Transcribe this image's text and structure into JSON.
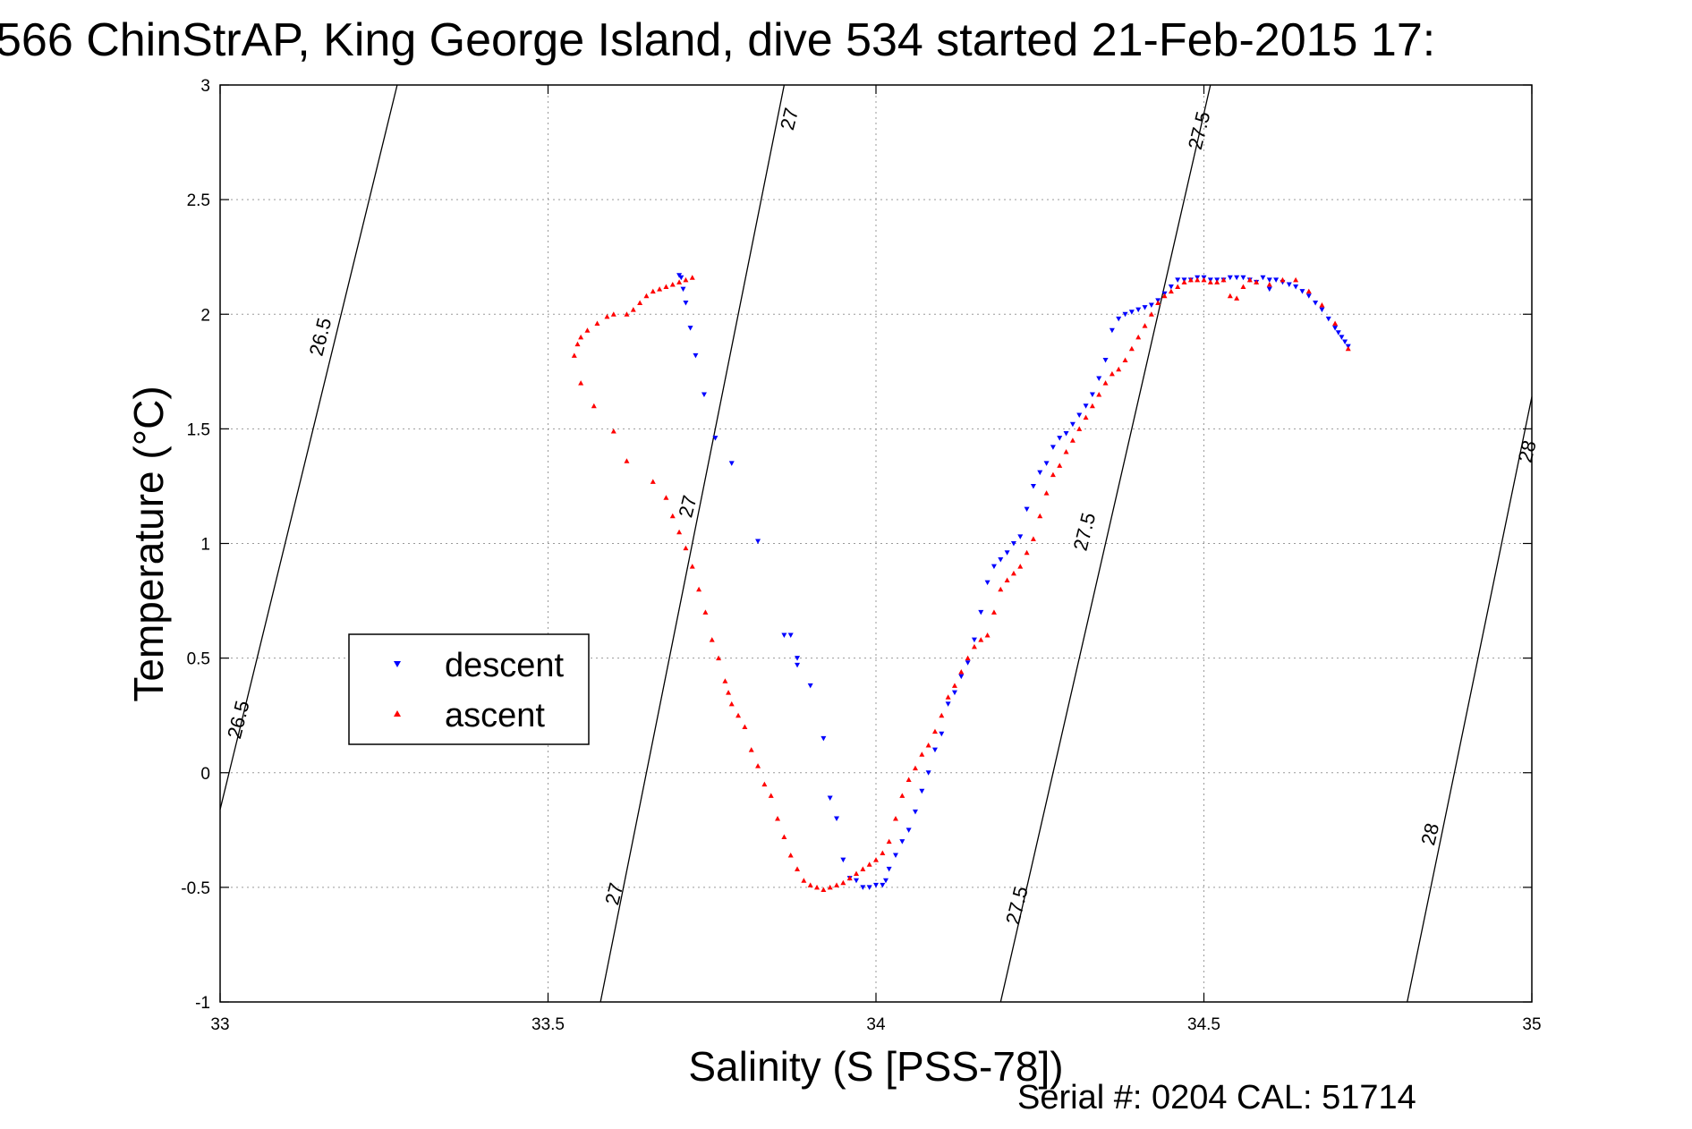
{
  "title": "566 ChinStrAP, King George Island, dive 534 started 21-Feb-2015 17:",
  "footer": "Serial #: 0204  CAL: 51714",
  "chart_data": {
    "type": "scatter",
    "title": "566 ChinStrAP, King George Island, dive 534 started 21-Feb-2015 17:",
    "xlabel": "Salinity (S [PSS-78])",
    "ylabel": "Temperature (°C)",
    "xlim": [
      33,
      35
    ],
    "ylim": [
      -1,
      3
    ],
    "xticks": [
      "33",
      "33.5",
      "34",
      "34.5",
      "35"
    ],
    "yticks": [
      "-1",
      "-0.5",
      "0",
      "0.5",
      "1",
      "1.5",
      "2",
      "2.5",
      "3"
    ],
    "grid": true,
    "legend_position": "center-left",
    "legend": [
      "descent",
      "ascent"
    ],
    "density_contours": [
      {
        "level": "26.5",
        "points": [
          [
            33.0,
            -0.16
          ],
          [
            33.27,
            3.0
          ]
        ]
      },
      {
        "level": "27",
        "points": [
          [
            33.58,
            -1.0
          ],
          [
            33.86,
            3.0
          ]
        ]
      },
      {
        "level": "27.5",
        "points": [
          [
            34.19,
            -1.0
          ],
          [
            34.51,
            3.0
          ]
        ]
      },
      {
        "level": "28",
        "points": [
          [
            34.81,
            -1.0
          ],
          [
            35.0,
            1.64
          ]
        ]
      }
    ],
    "contour_labels": [
      {
        "text": "26.5",
        "x": 33.155,
        "y": 1.9
      },
      {
        "text": "26.5",
        "x": 33.03,
        "y": 0.23
      },
      {
        "text": "27",
        "x": 33.87,
        "y": 2.85
      },
      {
        "text": "27",
        "x": 33.715,
        "y": 1.16
      },
      {
        "text": "27",
        "x": 33.603,
        "y": -0.53
      },
      {
        "text": "27.5",
        "x": 34.495,
        "y": 2.8
      },
      {
        "text": "27.5",
        "x": 34.32,
        "y": 1.05
      },
      {
        "text": "27.5",
        "x": 34.217,
        "y": -0.58
      },
      {
        "text": "28",
        "x": 34.995,
        "y": 1.4
      },
      {
        "text": "28",
        "x": 34.847,
        "y": -0.27
      }
    ],
    "series": [
      {
        "name": "descent",
        "color": "#0000ff",
        "marker": "triangle-down",
        "x": [
          33.7,
          33.703,
          33.706,
          33.71,
          33.717,
          33.725,
          33.738,
          33.755,
          33.78,
          33.82,
          33.86,
          33.87,
          33.88,
          33.88,
          33.9,
          33.92,
          33.93,
          33.94,
          33.95,
          33.96,
          33.97,
          33.98,
          33.99,
          34.0,
          34.01,
          34.015,
          34.02,
          34.03,
          34.04,
          34.05,
          34.06,
          34.07,
          34.08,
          34.09,
          34.1,
          34.11,
          34.12,
          34.13,
          34.14,
          34.15,
          34.16,
          34.17,
          34.18,
          34.19,
          34.2,
          34.21,
          34.22,
          34.23,
          34.24,
          34.25,
          34.26,
          34.27,
          34.28,
          34.29,
          34.3,
          34.31,
          34.32,
          34.33,
          34.34,
          34.35,
          34.36,
          34.37,
          34.38,
          34.39,
          34.4,
          34.41,
          34.42,
          34.43,
          34.44,
          34.45,
          34.46,
          34.47,
          34.48,
          34.49,
          34.5,
          34.51,
          34.52,
          34.53,
          34.54,
          34.55,
          34.56,
          34.57,
          34.58,
          34.59,
          34.6,
          34.61,
          34.62,
          34.63,
          34.64,
          34.65,
          34.66,
          34.67,
          34.68,
          34.69,
          34.7,
          34.705,
          34.71,
          34.715,
          34.72,
          34.6
        ],
        "y": [
          2.17,
          2.16,
          2.11,
          2.05,
          1.94,
          1.82,
          1.65,
          1.46,
          1.35,
          1.01,
          0.6,
          0.6,
          0.5,
          0.47,
          0.38,
          0.15,
          -0.11,
          -0.2,
          -0.38,
          -0.46,
          -0.47,
          -0.5,
          -0.5,
          -0.49,
          -0.49,
          -0.47,
          -0.42,
          -0.36,
          -0.3,
          -0.25,
          -0.17,
          -0.08,
          0.0,
          0.1,
          0.17,
          0.3,
          0.35,
          0.42,
          0.48,
          0.58,
          0.7,
          0.83,
          0.9,
          0.93,
          0.96,
          1.0,
          1.03,
          1.15,
          1.25,
          1.31,
          1.35,
          1.42,
          1.46,
          1.48,
          1.52,
          1.56,
          1.6,
          1.65,
          1.72,
          1.8,
          1.93,
          1.98,
          2.0,
          2.01,
          2.02,
          2.03,
          2.04,
          2.06,
          2.09,
          2.12,
          2.15,
          2.15,
          2.15,
          2.16,
          2.16,
          2.15,
          2.15,
          2.15,
          2.16,
          2.16,
          2.16,
          2.15,
          2.14,
          2.16,
          2.15,
          2.15,
          2.14,
          2.13,
          2.12,
          2.1,
          2.08,
          2.05,
          2.02,
          1.98,
          1.94,
          1.92,
          1.9,
          1.88,
          1.86,
          2.11
        ]
      },
      {
        "name": "ascent",
        "color": "#ff0000",
        "marker": "triangle-up",
        "x": [
          33.72,
          33.71,
          33.7,
          33.69,
          33.68,
          33.67,
          33.66,
          33.65,
          33.64,
          33.63,
          33.62,
          33.6,
          33.59,
          33.575,
          33.56,
          33.55,
          33.545,
          33.54,
          33.55,
          33.57,
          33.6,
          33.62,
          33.66,
          33.68,
          33.69,
          33.7,
          33.71,
          33.72,
          33.73,
          33.74,
          33.75,
          33.76,
          33.77,
          33.775,
          33.78,
          33.79,
          33.8,
          33.81,
          33.82,
          33.83,
          33.84,
          33.85,
          33.86,
          33.87,
          33.88,
          33.89,
          33.9,
          33.91,
          33.92,
          33.93,
          33.94,
          33.95,
          33.96,
          33.97,
          33.98,
          33.99,
          34.0,
          34.01,
          34.02,
          34.03,
          34.04,
          34.05,
          34.06,
          34.07,
          34.08,
          34.09,
          34.1,
          34.11,
          34.12,
          34.13,
          34.14,
          34.15,
          34.16,
          34.17,
          34.18,
          34.19,
          34.2,
          34.21,
          34.22,
          34.23,
          34.24,
          34.25,
          34.26,
          34.27,
          34.28,
          34.29,
          34.3,
          34.31,
          34.32,
          34.33,
          34.34,
          34.35,
          34.36,
          34.37,
          34.38,
          34.39,
          34.4,
          34.41,
          34.42,
          34.43,
          34.44,
          34.45,
          34.46,
          34.47,
          34.48,
          34.49,
          34.5,
          34.51,
          34.52,
          34.53,
          34.54,
          34.55,
          34.56,
          34.57,
          34.58,
          34.6,
          34.62,
          34.64,
          34.66,
          34.68,
          34.7,
          34.72
        ],
        "y": [
          2.16,
          2.15,
          2.14,
          2.13,
          2.12,
          2.11,
          2.1,
          2.08,
          2.05,
          2.02,
          2.0,
          2.0,
          1.99,
          1.96,
          1.93,
          1.9,
          1.87,
          1.82,
          1.7,
          1.6,
          1.49,
          1.36,
          1.27,
          1.2,
          1.12,
          1.05,
          0.98,
          0.9,
          0.8,
          0.7,
          0.58,
          0.5,
          0.4,
          0.35,
          0.3,
          0.25,
          0.2,
          0.1,
          0.03,
          -0.05,
          -0.1,
          -0.2,
          -0.28,
          -0.36,
          -0.42,
          -0.47,
          -0.49,
          -0.5,
          -0.51,
          -0.5,
          -0.49,
          -0.48,
          -0.46,
          -0.44,
          -0.42,
          -0.4,
          -0.38,
          -0.35,
          -0.3,
          -0.2,
          -0.1,
          -0.03,
          0.02,
          0.08,
          0.12,
          0.18,
          0.25,
          0.33,
          0.38,
          0.44,
          0.5,
          0.55,
          0.58,
          0.6,
          0.7,
          0.8,
          0.84,
          0.87,
          0.9,
          0.96,
          1.02,
          1.12,
          1.22,
          1.3,
          1.34,
          1.4,
          1.45,
          1.5,
          1.55,
          1.6,
          1.65,
          1.7,
          1.74,
          1.76,
          1.8,
          1.85,
          1.9,
          1.95,
          2.0,
          2.05,
          2.08,
          2.1,
          2.12,
          2.14,
          2.15,
          2.15,
          2.15,
          2.14,
          2.14,
          2.15,
          2.08,
          2.07,
          2.12,
          2.15,
          2.14,
          2.13,
          2.15,
          2.15,
          2.1,
          2.04,
          1.96,
          1.85
        ]
      }
    ]
  }
}
